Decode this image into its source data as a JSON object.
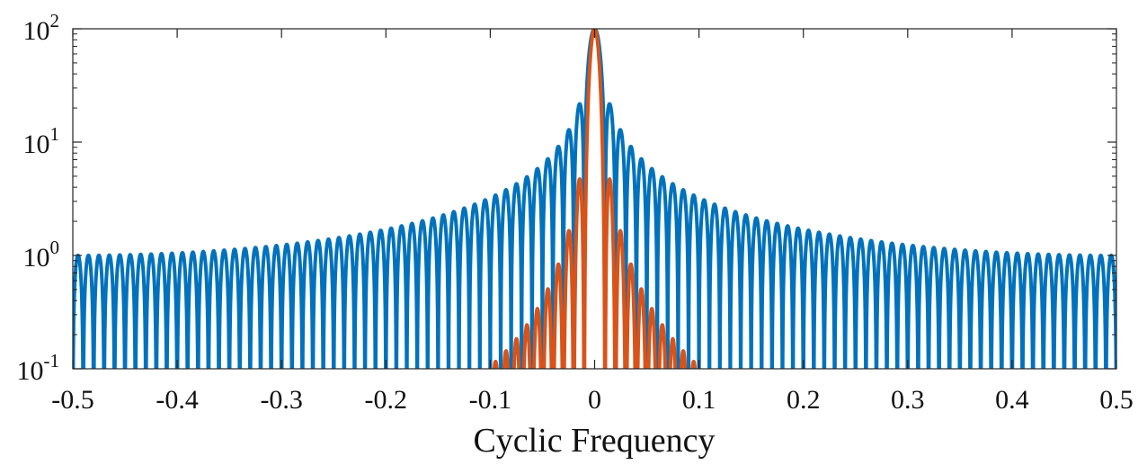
{
  "chart_data": {
    "type": "line",
    "title": "",
    "xlabel": "Cyclic Frequency",
    "ylabel": "",
    "xlim": [
      -0.5,
      0.5
    ],
    "ylim": [
      0.1,
      100
    ],
    "yscale": "log",
    "grid": false,
    "legend": "none",
    "x_ticks": [
      "-0.5",
      "-0.4",
      "-0.3",
      "-0.2",
      "-0.1",
      "0",
      "0.1",
      "0.2",
      "0.3",
      "0.4",
      "0.5"
    ],
    "y_ticks": [
      {
        "base": "10",
        "exp": "-1"
      },
      {
        "base": "10",
        "exp": "0"
      },
      {
        "base": "10",
        "exp": "1"
      },
      {
        "base": "10",
        "exp": "2"
      }
    ],
    "series": [
      {
        "color": "#0072BD",
        "curve": "abs(periodic sinc), N=100 peak=100, lobes ~1/|sin(pi f)|",
        "N": 100,
        "peak": 100,
        "sidelobe_peaks": [
          {
            "x": -0.015,
            "y": 21.7
          },
          {
            "x": -0.025,
            "y": 12.8
          },
          {
            "x": -0.035,
            "y": 9.1
          },
          {
            "x": -0.1,
            "y": 3.3
          },
          {
            "x": -0.2,
            "y": 1.7
          },
          {
            "x": -0.3,
            "y": 1.25
          },
          {
            "x": -0.4,
            "y": 1.05
          },
          {
            "x": -0.5,
            "y": 1.0
          },
          {
            "x": 0.015,
            "y": 21.7
          },
          {
            "x": 0.1,
            "y": 3.3
          },
          {
            "x": 0.2,
            "y": 1.7
          },
          {
            "x": 0.3,
            "y": 1.25
          },
          {
            "x": 0.4,
            "y": 1.05
          },
          {
            "x": 0.5,
            "y": 1.0
          }
        ]
      },
      {
        "color": "#D95319",
        "curve": "abs(sinc^2) response, N=100 peak=100",
        "N": 100,
        "peak": 100,
        "sidelobe_peaks": [
          {
            "x": -0.015,
            "y": 4.7
          },
          {
            "x": -0.025,
            "y": 1.6
          },
          {
            "x": -0.035,
            "y": 0.83
          },
          {
            "x": -0.045,
            "y": 0.5
          },
          {
            "x": -0.055,
            "y": 0.33
          },
          {
            "x": -0.065,
            "y": 0.24
          },
          {
            "x": -0.075,
            "y": 0.18
          },
          {
            "x": -0.085,
            "y": 0.14
          },
          {
            "x": 0.015,
            "y": 4.7
          },
          {
            "x": 0.025,
            "y": 1.6
          },
          {
            "x": 0.035,
            "y": 0.83
          },
          {
            "x": 0.085,
            "y": 0.14
          }
        ]
      }
    ]
  }
}
